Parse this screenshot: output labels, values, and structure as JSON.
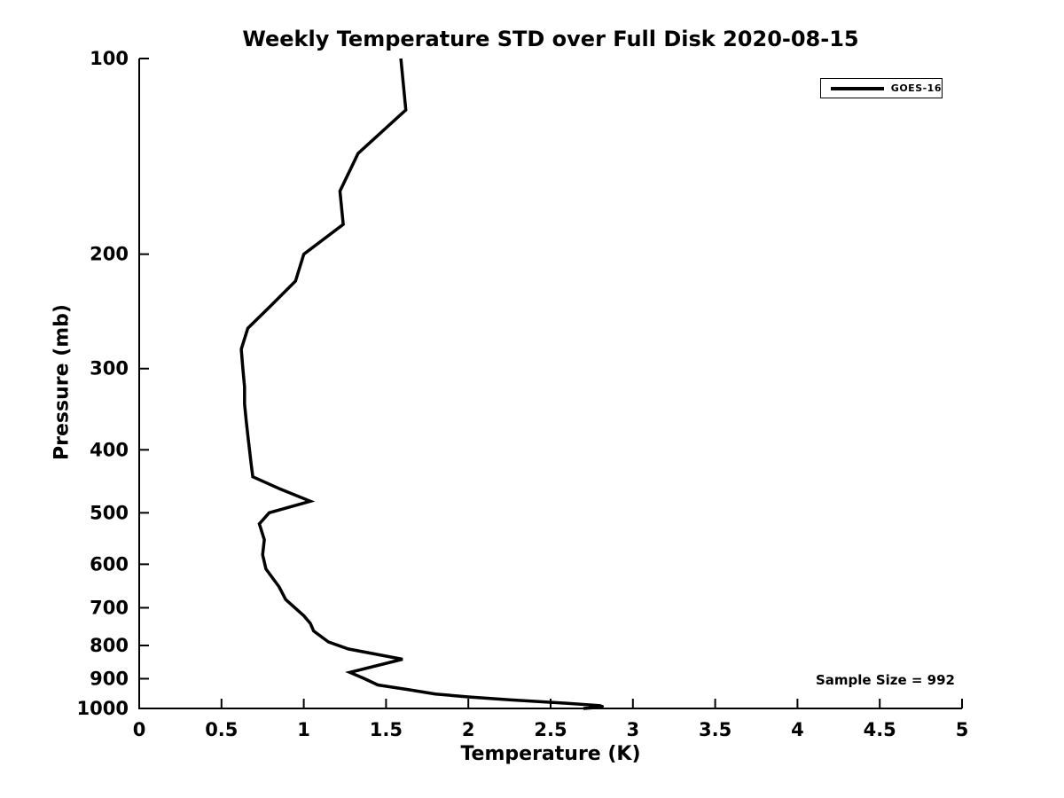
{
  "chart_data": {
    "type": "line",
    "title": "Weekly Temperature STD over Full Disk 2020-08-15",
    "xlabel": "Temperature (K)",
    "ylabel": "Pressure (mb)",
    "xlim": [
      0,
      5
    ],
    "ylim": [
      100,
      1000
    ],
    "y_scale": "log",
    "y_inverted": true,
    "grid": false,
    "x_ticks": [
      0,
      0.5,
      1,
      1.5,
      2,
      2.5,
      3,
      3.5,
      4,
      4.5,
      5
    ],
    "x_tick_labels": [
      "0",
      "0.5",
      "1",
      "1.5",
      "2",
      "2.5",
      "3",
      "3.5",
      "4",
      "4.5",
      "5"
    ],
    "y_ticks": [
      100,
      200,
      300,
      400,
      500,
      600,
      700,
      800,
      900,
      1000
    ],
    "y_tick_labels": [
      "100",
      "200",
      "300",
      "400",
      "500",
      "600",
      "700",
      "800",
      "900",
      "1000"
    ],
    "legend": {
      "position": "top-right",
      "entries": [
        {
          "label": "GOES-16",
          "color": "#000000",
          "style": "solid"
        }
      ]
    },
    "annotation": {
      "text": "Sample Size = 992",
      "position": "bottom-right"
    },
    "series": [
      {
        "name": "GOES-16",
        "color": "#000000",
        "line_width": 3.5,
        "x_temperature_K": [
          1.59,
          1.62,
          1.33,
          1.22,
          1.24,
          1.0,
          0.95,
          0.8,
          0.66,
          0.62,
          0.63,
          0.64,
          0.64,
          0.65,
          0.66,
          0.67,
          0.68,
          0.69,
          0.86,
          1.04,
          0.79,
          0.73,
          0.76,
          0.75,
          0.77,
          0.85,
          0.89,
          1.0,
          1.04,
          1.06,
          1.15,
          1.27,
          1.6,
          1.28,
          1.37,
          1.45,
          1.63,
          1.8,
          2.0,
          2.25,
          2.55,
          2.8,
          2.82,
          2.7
        ],
        "y_pressure_mb": [
          100,
          120,
          140,
          160,
          180,
          200,
          220,
          240,
          260,
          280,
          300,
          320,
          340,
          360,
          380,
          400,
          420,
          440,
          460,
          480,
          500,
          520,
          550,
          580,
          610,
          650,
          680,
          720,
          740,
          760,
          790,
          810,
          840,
          880,
          900,
          920,
          935,
          950,
          960,
          970,
          980,
          990,
          995,
          1000
        ]
      }
    ]
  }
}
